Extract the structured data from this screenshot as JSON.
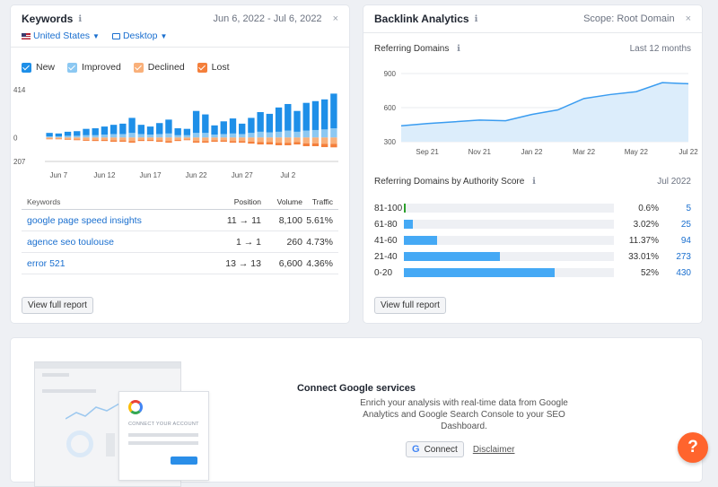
{
  "keywords_card": {
    "title": "Keywords",
    "date_range": "Jun 6, 2022 - Jul 6, 2022",
    "close": "×",
    "filters": {
      "country": "United States",
      "device": "Desktop"
    },
    "legend": [
      {
        "label": "New",
        "color": "#1e8fe8"
      },
      {
        "label": "Improved",
        "color": "#8cc8f2"
      },
      {
        "label": "Declined",
        "color": "#f9b07a"
      },
      {
        "label": "Lost",
        "color": "#f47f3b"
      }
    ],
    "table": {
      "headers": [
        "Keywords",
        "Position",
        "Volume",
        "Traffic"
      ],
      "rows": [
        {
          "keyword": "google page speed insights",
          "position": "11 → 11",
          "volume": "8,100",
          "traffic": "5.61%"
        },
        {
          "keyword": "agence seo toulouse",
          "position": "1 → 1",
          "volume": "260",
          "traffic": "4.73%"
        },
        {
          "keyword": "error 521",
          "position": "13 → 13",
          "volume": "6,600",
          "traffic": "4.36%"
        }
      ]
    },
    "view_report": "View full report"
  },
  "backlink_card": {
    "title": "Backlink Analytics",
    "scope": "Scope: Root Domain",
    "close": "×",
    "referring_domains_title": "Referring Domains",
    "referring_domains_period": "Last 12 months",
    "authority_title": "Referring Domains by Authority Score",
    "authority_period": "Jul 2022",
    "authority_rows": [
      {
        "label": "81-100",
        "pct": "0.6%",
        "count": "5",
        "fraction": 0.006,
        "color": "#2ca02c"
      },
      {
        "label": "61-80",
        "pct": "3.02%",
        "count": "25",
        "fraction": 0.0302,
        "color": "#45a9f5"
      },
      {
        "label": "41-60",
        "pct": "11.37%",
        "count": "94",
        "fraction": 0.1137,
        "color": "#45a9f5"
      },
      {
        "label": "21-40",
        "pct": "33.01%",
        "count": "273",
        "fraction": 0.3301,
        "color": "#45a9f5"
      },
      {
        "label": "0-20",
        "pct": "52%",
        "count": "430",
        "fraction": 0.52,
        "color": "#45a9f5"
      }
    ],
    "view_report": "View full report"
  },
  "google_card": {
    "title": "Connect Google services",
    "description": "Enrich your analysis with real-time data from Google Analytics and Google Search Console to your SEO Dashboard.",
    "connect": "Connect",
    "g_letter": "G",
    "disclaimer": "Disclaimer",
    "illustration_text": "CONNECT YOUR ACCOUNT"
  },
  "help": "?",
  "chart_data": [
    {
      "type": "bar",
      "yticks": [
        "414",
        "0",
        "207"
      ],
      "x_tick_labels": [
        "Jun 7",
        "Jun 12",
        "Jun 17",
        "Jun 22",
        "Jun 27",
        "Jul 2"
      ],
      "x_tick_index": [
        1,
        6,
        11,
        16,
        21,
        26
      ],
      "ylim": [
        -207,
        414
      ],
      "series": [
        {
          "name": "New",
          "values": [
            30,
            25,
            35,
            40,
            55,
            60,
            70,
            80,
            90,
            130,
            80,
            70,
            95,
            120,
            60,
            55,
            190,
            160,
            80,
            110,
            130,
            90,
            130,
            170,
            160,
            210,
            230,
            180,
            240,
            250,
            260,
            300
          ]
        },
        {
          "name": "Improved",
          "values": [
            10,
            10,
            15,
            15,
            20,
            20,
            25,
            30,
            30,
            40,
            30,
            25,
            30,
            35,
            20,
            20,
            40,
            40,
            25,
            30,
            35,
            30,
            40,
            50,
            45,
            50,
            60,
            50,
            60,
            65,
            70,
            80
          ]
        },
        {
          "name": "Declined",
          "values": [
            -10,
            -10,
            -15,
            -15,
            -20,
            -20,
            -20,
            -25,
            -25,
            -30,
            -20,
            -20,
            -25,
            -30,
            -20,
            -15,
            -30,
            -30,
            -25,
            -25,
            -30,
            -30,
            -35,
            -40,
            -40,
            -45,
            -45,
            -40,
            -50,
            -50,
            -55,
            -55
          ]
        },
        {
          "name": "Lost",
          "values": [
            -5,
            -5,
            -5,
            -8,
            -8,
            -10,
            -10,
            -12,
            -12,
            -15,
            -10,
            -10,
            -12,
            -15,
            -10,
            -8,
            -15,
            -15,
            -12,
            -12,
            -15,
            -15,
            -18,
            -20,
            -20,
            -22,
            -22,
            -20,
            -25,
            -25,
            -28,
            -30
          ]
        }
      ]
    },
    {
      "type": "area",
      "title": "Referring Domains",
      "yticks": [
        900,
        600,
        300
      ],
      "ylim": [
        300,
        900
      ],
      "x_tick_labels": [
        "Sep 21",
        "Nov 21",
        "Jan 22",
        "Mar 22",
        "May 22",
        "Jul 22"
      ],
      "x": [
        "Aug 21",
        "Sep 21",
        "Oct 21",
        "Nov 21",
        "Dec 21",
        "Jan 22",
        "Feb 22",
        "Mar 22",
        "Apr 22",
        "May 22",
        "Jun 22",
        "Jul 22"
      ],
      "values": [
        440,
        460,
        475,
        490,
        485,
        540,
        580,
        680,
        715,
        740,
        820,
        810
      ]
    },
    {
      "type": "bar",
      "title": "Referring Domains by Authority Score",
      "categories": [
        "81-100",
        "61-80",
        "41-60",
        "21-40",
        "0-20"
      ],
      "values": [
        5,
        25,
        94,
        273,
        430
      ],
      "percent": [
        0.6,
        3.02,
        11.37,
        33.01,
        52
      ]
    }
  ]
}
